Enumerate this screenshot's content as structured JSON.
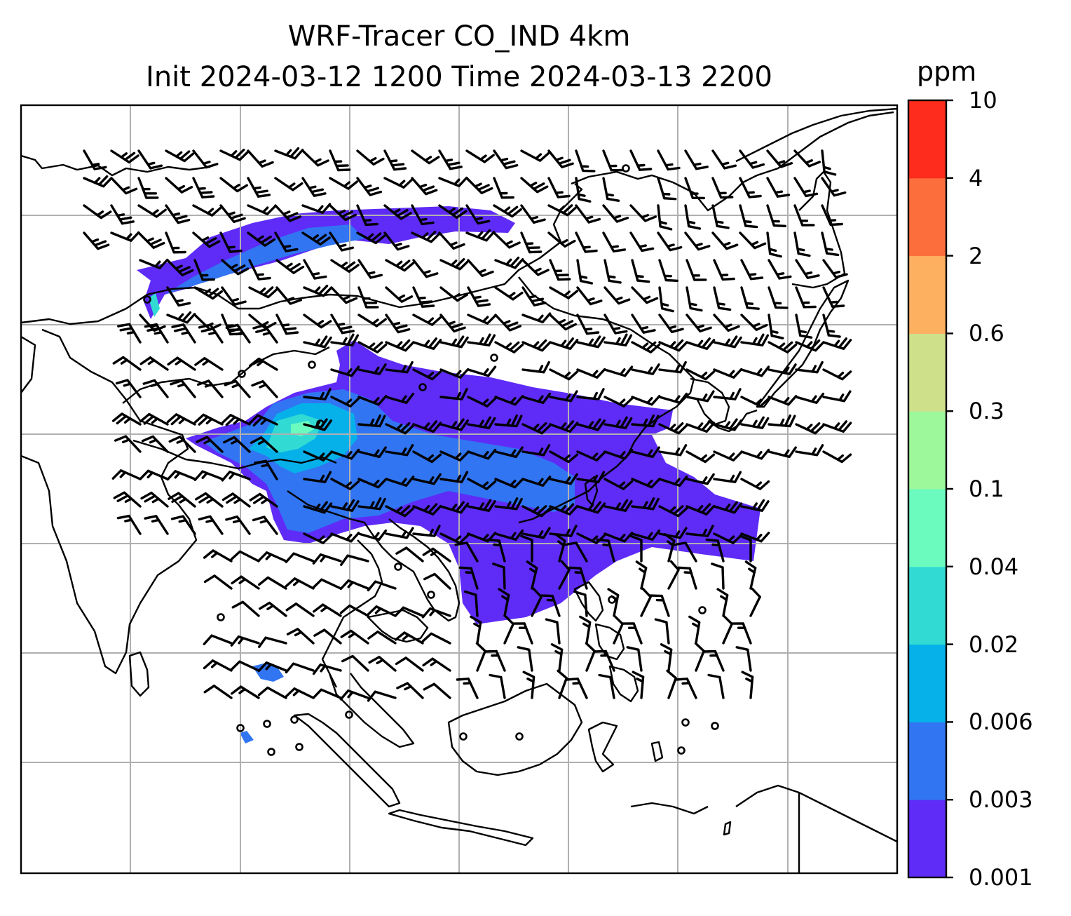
{
  "title": {
    "line1": "WRF-Tracer CO_IND 4km",
    "line2": "Init 2024-03-12 1200 Time 2024-03-13 2200"
  },
  "colorbar": {
    "unit": "ppm",
    "levels": [
      "0.001",
      "0.003",
      "0.006",
      "0.02",
      "0.04",
      "0.1",
      "0.3",
      "0.6",
      "2",
      "4",
      "10"
    ],
    "colors": [
      "#5f2bf7",
      "#3175f2",
      "#06b1ea",
      "#31dbd4",
      "#6bfbbf",
      "#9df89b",
      "#cfe08b",
      "#fdb060",
      "#fd6e3d",
      "#fd2c1c"
    ]
  },
  "map": {
    "projection": "lat-lon",
    "gridlines": true,
    "coastlines": true,
    "borders": true,
    "wind_barbs": true,
    "colors": {
      "grid": "#b0b0b0",
      "coast": "#000000",
      "barb": "#000000"
    }
  }
}
